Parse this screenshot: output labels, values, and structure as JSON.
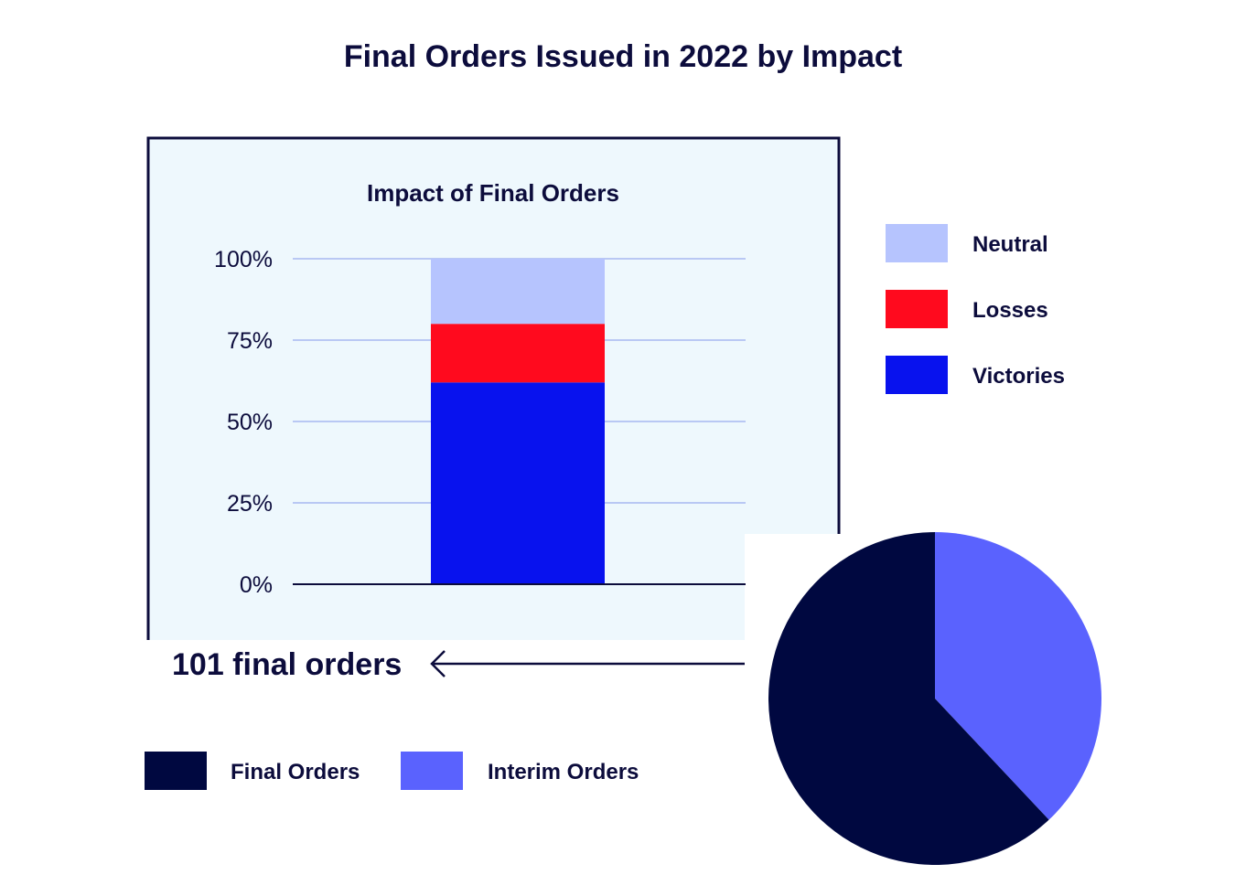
{
  "title": "Final Orders Issued in 2022 by Impact",
  "colors": {
    "ink": "#0c0c3c",
    "panel_bg": "#eef8fd",
    "grid": "#b9c8f4",
    "neutral": "#b6c4fe",
    "losses": "#ff0a1e",
    "victories": "#0812ee",
    "final": "#000840",
    "interim": "#5a62fe"
  },
  "annotation": "101 final orders",
  "chart_data": [
    {
      "type": "bar",
      "stacked": true,
      "title": "Impact of Final Orders",
      "categories": [
        ""
      ],
      "series": [
        {
          "name": "Victories",
          "values": [
            62
          ],
          "color": "#0812ee"
        },
        {
          "name": "Losses",
          "values": [
            18
          ],
          "color": "#ff0a1e"
        },
        {
          "name": "Neutral",
          "values": [
            20
          ],
          "color": "#b6c4fe"
        }
      ],
      "ylim": [
        0,
        100
      ],
      "yticks": [
        0,
        25,
        50,
        75,
        100
      ],
      "ytick_labels": [
        "0%",
        "25%",
        "50%",
        "75%",
        "100%"
      ],
      "legend": [
        "Neutral",
        "Losses",
        "Victories"
      ],
      "legend_position": "right",
      "grid": true
    },
    {
      "type": "pie",
      "slices": [
        {
          "name": "Interim Orders",
          "value": 38,
          "color": "#5a62fe"
        },
        {
          "name": "Final Orders",
          "value": 62,
          "color": "#000840"
        }
      ],
      "legend": [
        "Final Orders",
        "Interim Orders"
      ],
      "legend_position": "bottom-left"
    }
  ]
}
